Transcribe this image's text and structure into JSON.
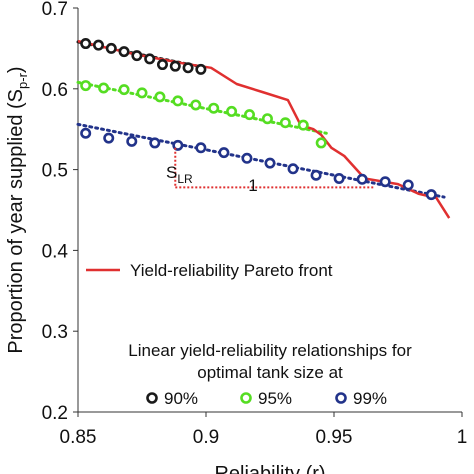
{
  "chart_data": {
    "type": "scatter",
    "xlabel": "Reliability  (r)",
    "ylabel_main": "Proportion of year supplied (S",
    "ylabel_sub": "p-r",
    "ylabel_close": ")",
    "xlim": [
      0.85,
      1.0
    ],
    "ylim": [
      0.2,
      0.7
    ],
    "x_ticks": [
      0.85,
      0.9,
      0.95,
      1.0
    ],
    "x_tick_labels": [
      "0.85",
      "0.9",
      "0.95",
      "1"
    ],
    "y_ticks": [
      0.2,
      0.3,
      0.4,
      0.5,
      0.6,
      0.7
    ],
    "y_tick_labels": [
      "0.2",
      "0.3",
      "0.4",
      "0.5",
      "0.6",
      "0.7"
    ],
    "grid": false,
    "pareto_front": {
      "name": "Yield-reliability  Pareto front",
      "color": "#e03030",
      "x": [
        0.85,
        0.872,
        0.892,
        0.902,
        0.912,
        0.922,
        0.932,
        0.937,
        0.942,
        0.945,
        0.949,
        0.954,
        0.962,
        0.975,
        0.983,
        0.99,
        0.995
      ],
      "y": [
        0.659,
        0.643,
        0.631,
        0.626,
        0.606,
        0.596,
        0.586,
        0.555,
        0.55,
        0.543,
        0.527,
        0.517,
        0.489,
        0.482,
        0.47,
        0.465,
        0.44
      ]
    },
    "series": [
      {
        "name": "90%",
        "color": "#1a1a1a",
        "x": [
          0.853,
          0.858,
          0.863,
          0.868,
          0.873,
          0.878,
          0.883,
          0.888,
          0.893,
          0.898
        ],
        "y": [
          0.656,
          0.654,
          0.65,
          0.646,
          0.641,
          0.637,
          0.63,
          0.628,
          0.626,
          0.624
        ],
        "fit": {
          "x": [
            0.85,
            0.9
          ],
          "y": [
            0.658,
            0.626
          ]
        }
      },
      {
        "name": "95%",
        "color": "#55dd22",
        "x": [
          0.853,
          0.86,
          0.868,
          0.875,
          0.882,
          0.889,
          0.896,
          0.903,
          0.91,
          0.917,
          0.924,
          0.931,
          0.938,
          0.945
        ],
        "y": [
          0.604,
          0.601,
          0.599,
          0.595,
          0.59,
          0.585,
          0.58,
          0.576,
          0.572,
          0.568,
          0.563,
          0.558,
          0.555,
          0.533
        ],
        "fit": {
          "x": [
            0.85,
            0.947
          ],
          "y": [
            0.608,
            0.545
          ]
        }
      },
      {
        "name": "99%",
        "color": "#22338a",
        "x": [
          0.853,
          0.862,
          0.871,
          0.88,
          0.889,
          0.898,
          0.907,
          0.916,
          0.925,
          0.934,
          0.943,
          0.952,
          0.961,
          0.97,
          0.979,
          0.988
        ],
        "y": [
          0.545,
          0.539,
          0.535,
          0.533,
          0.53,
          0.527,
          0.521,
          0.514,
          0.508,
          0.501,
          0.493,
          0.489,
          0.488,
          0.485,
          0.481,
          0.469
        ],
        "fit": {
          "x": [
            0.85,
            0.993
          ],
          "y": [
            0.556,
            0.466
          ]
        }
      }
    ],
    "annotations": {
      "slope_label": "S",
      "slope_sub": "LR",
      "run_label": "1",
      "color": "#e03030"
    },
    "legend_front_label": "Yield-reliability  Pareto front",
    "legend_title_line1": "Linear yield-reliability relationships for",
    "legend_title_line2": "optimal tank size at",
    "legend_position": "lower-left"
  }
}
